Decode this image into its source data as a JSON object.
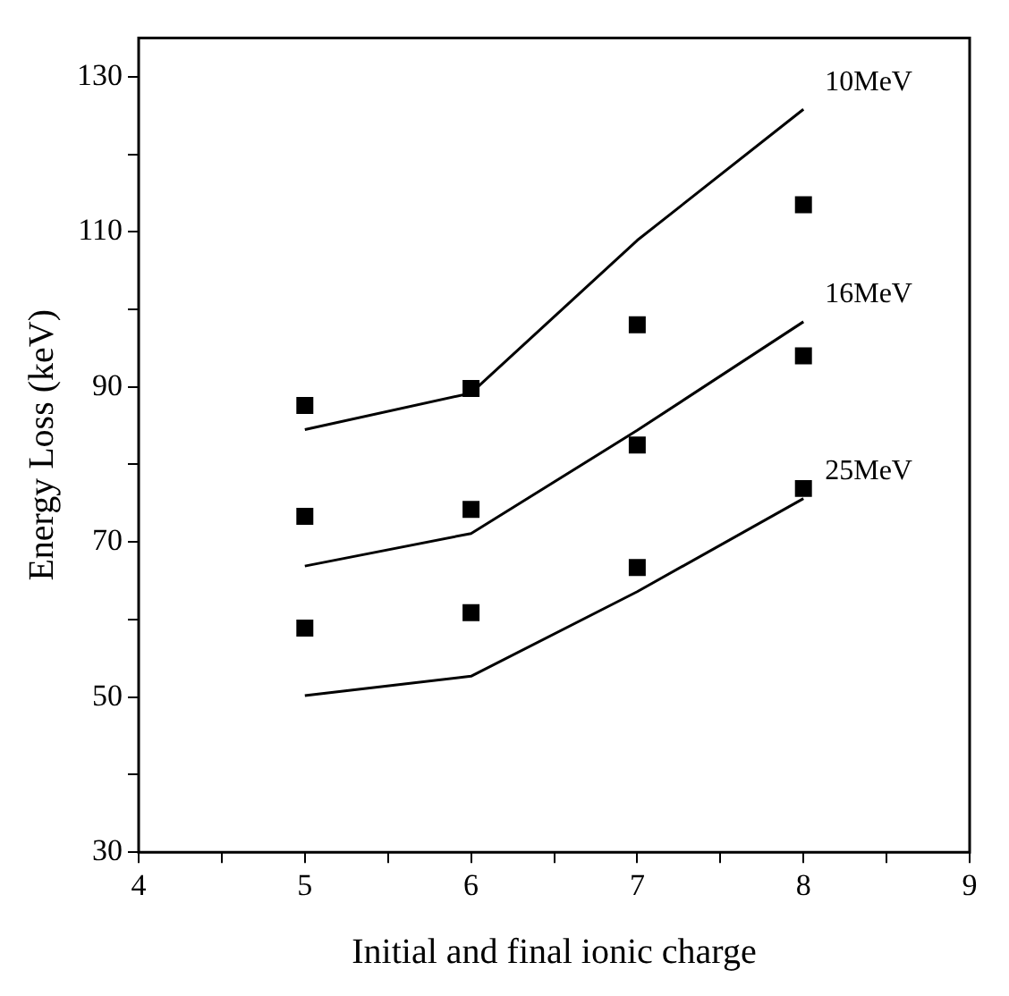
{
  "chart_data": {
    "type": "line",
    "xlabel": "Initial and final ionic charge",
    "ylabel": "Energy Loss (keV)",
    "x": [
      5,
      6,
      7,
      8
    ],
    "series": [
      {
        "name": "10MeV",
        "type": "line",
        "color": "#000000",
        "values": [
          84.5,
          89.2,
          108.9,
          125.8
        ]
      },
      {
        "name": "16MeV",
        "type": "line",
        "color": "#000000",
        "values": [
          66.9,
          71.1,
          84.4,
          98.4
        ]
      },
      {
        "name": "25MeV",
        "type": "line",
        "color": "#000000",
        "values": [
          50.2,
          52.7,
          63.6,
          75.6
        ]
      },
      {
        "type": "scatter",
        "color": "#000000",
        "marker": "square",
        "values": [
          87.6,
          89.8,
          98,
          113.5
        ]
      },
      {
        "type": "scatter",
        "color": "#000000",
        "marker": "square",
        "values": [
          73.3,
          74.2,
          82.5,
          94
        ]
      },
      {
        "type": "scatter",
        "color": "#000000",
        "marker": "square",
        "values": [
          58.9,
          60.9,
          66.7,
          76.9
        ]
      }
    ],
    "xlim": [
      4,
      9
    ],
    "xticks": [
      4,
      {
        "value": 4.5,
        "label": null
      },
      5,
      {
        "value": 5.5,
        "label": null
      },
      6,
      {
        "value": 6.5,
        "label": null
      },
      7,
      {
        "value": 7.5,
        "label": null
      },
      8,
      {
        "value": 8.5,
        "label": null
      },
      9
    ],
    "ylim": [
      30,
      135
    ],
    "yticks": [
      30,
      {
        "value": 40,
        "label": null
      },
      50,
      {
        "value": 60,
        "label": null
      },
      70,
      {
        "value": 80,
        "label": null
      },
      90,
      {
        "value": 100,
        "label": null
      },
      110,
      {
        "value": 120,
        "label": null
      },
      130
    ],
    "grid": false,
    "legend": false
  }
}
